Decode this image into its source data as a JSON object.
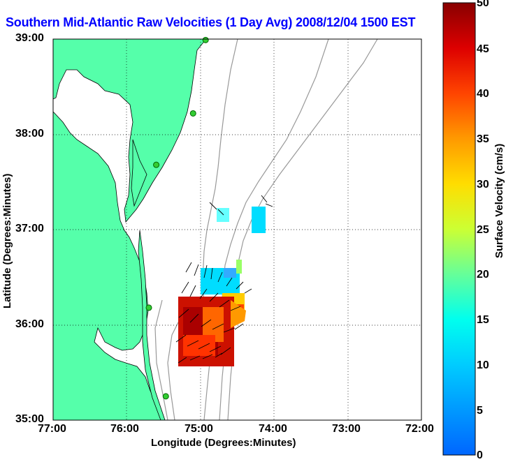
{
  "title": "Southern Mid-Atlantic Raw Velocities (1 Day Avg) 2008/12/04 1500 EST",
  "map": {
    "x_ticks": [
      "77:00",
      "76:00",
      "75:00",
      "74:00",
      "73:00",
      "72:00"
    ],
    "y_ticks": [
      "39:00",
      "38:00",
      "37:00",
      "36:00",
      "35:00"
    ],
    "xlabel": "Longitude (Degrees:Minutes)",
    "ylabel": "Latitude (Degrees:Minutes)",
    "lon_range": [
      -77,
      -72
    ],
    "lat_range": [
      35,
      39
    ],
    "land_color": "#55ffaa",
    "coast_color": "#000000",
    "bathy_color": "#999999",
    "grid": "dotted",
    "station_color": "#33cc33",
    "stations": [
      {
        "lon": -74.93,
        "lat": 38.99
      },
      {
        "lon": -75.1,
        "lat": 38.22
      },
      {
        "lon": -75.6,
        "lat": 37.68
      },
      {
        "lon": -75.7,
        "lat": 36.18
      },
      {
        "lon": -75.47,
        "lat": 35.25
      }
    ]
  },
  "colorbar": {
    "label": "Surface Velocity (cm/s)",
    "ticks": [
      "0",
      "5",
      "10",
      "15",
      "20",
      "25",
      "30",
      "35",
      "40",
      "45",
      "50"
    ],
    "range": [
      0,
      50
    ]
  }
}
